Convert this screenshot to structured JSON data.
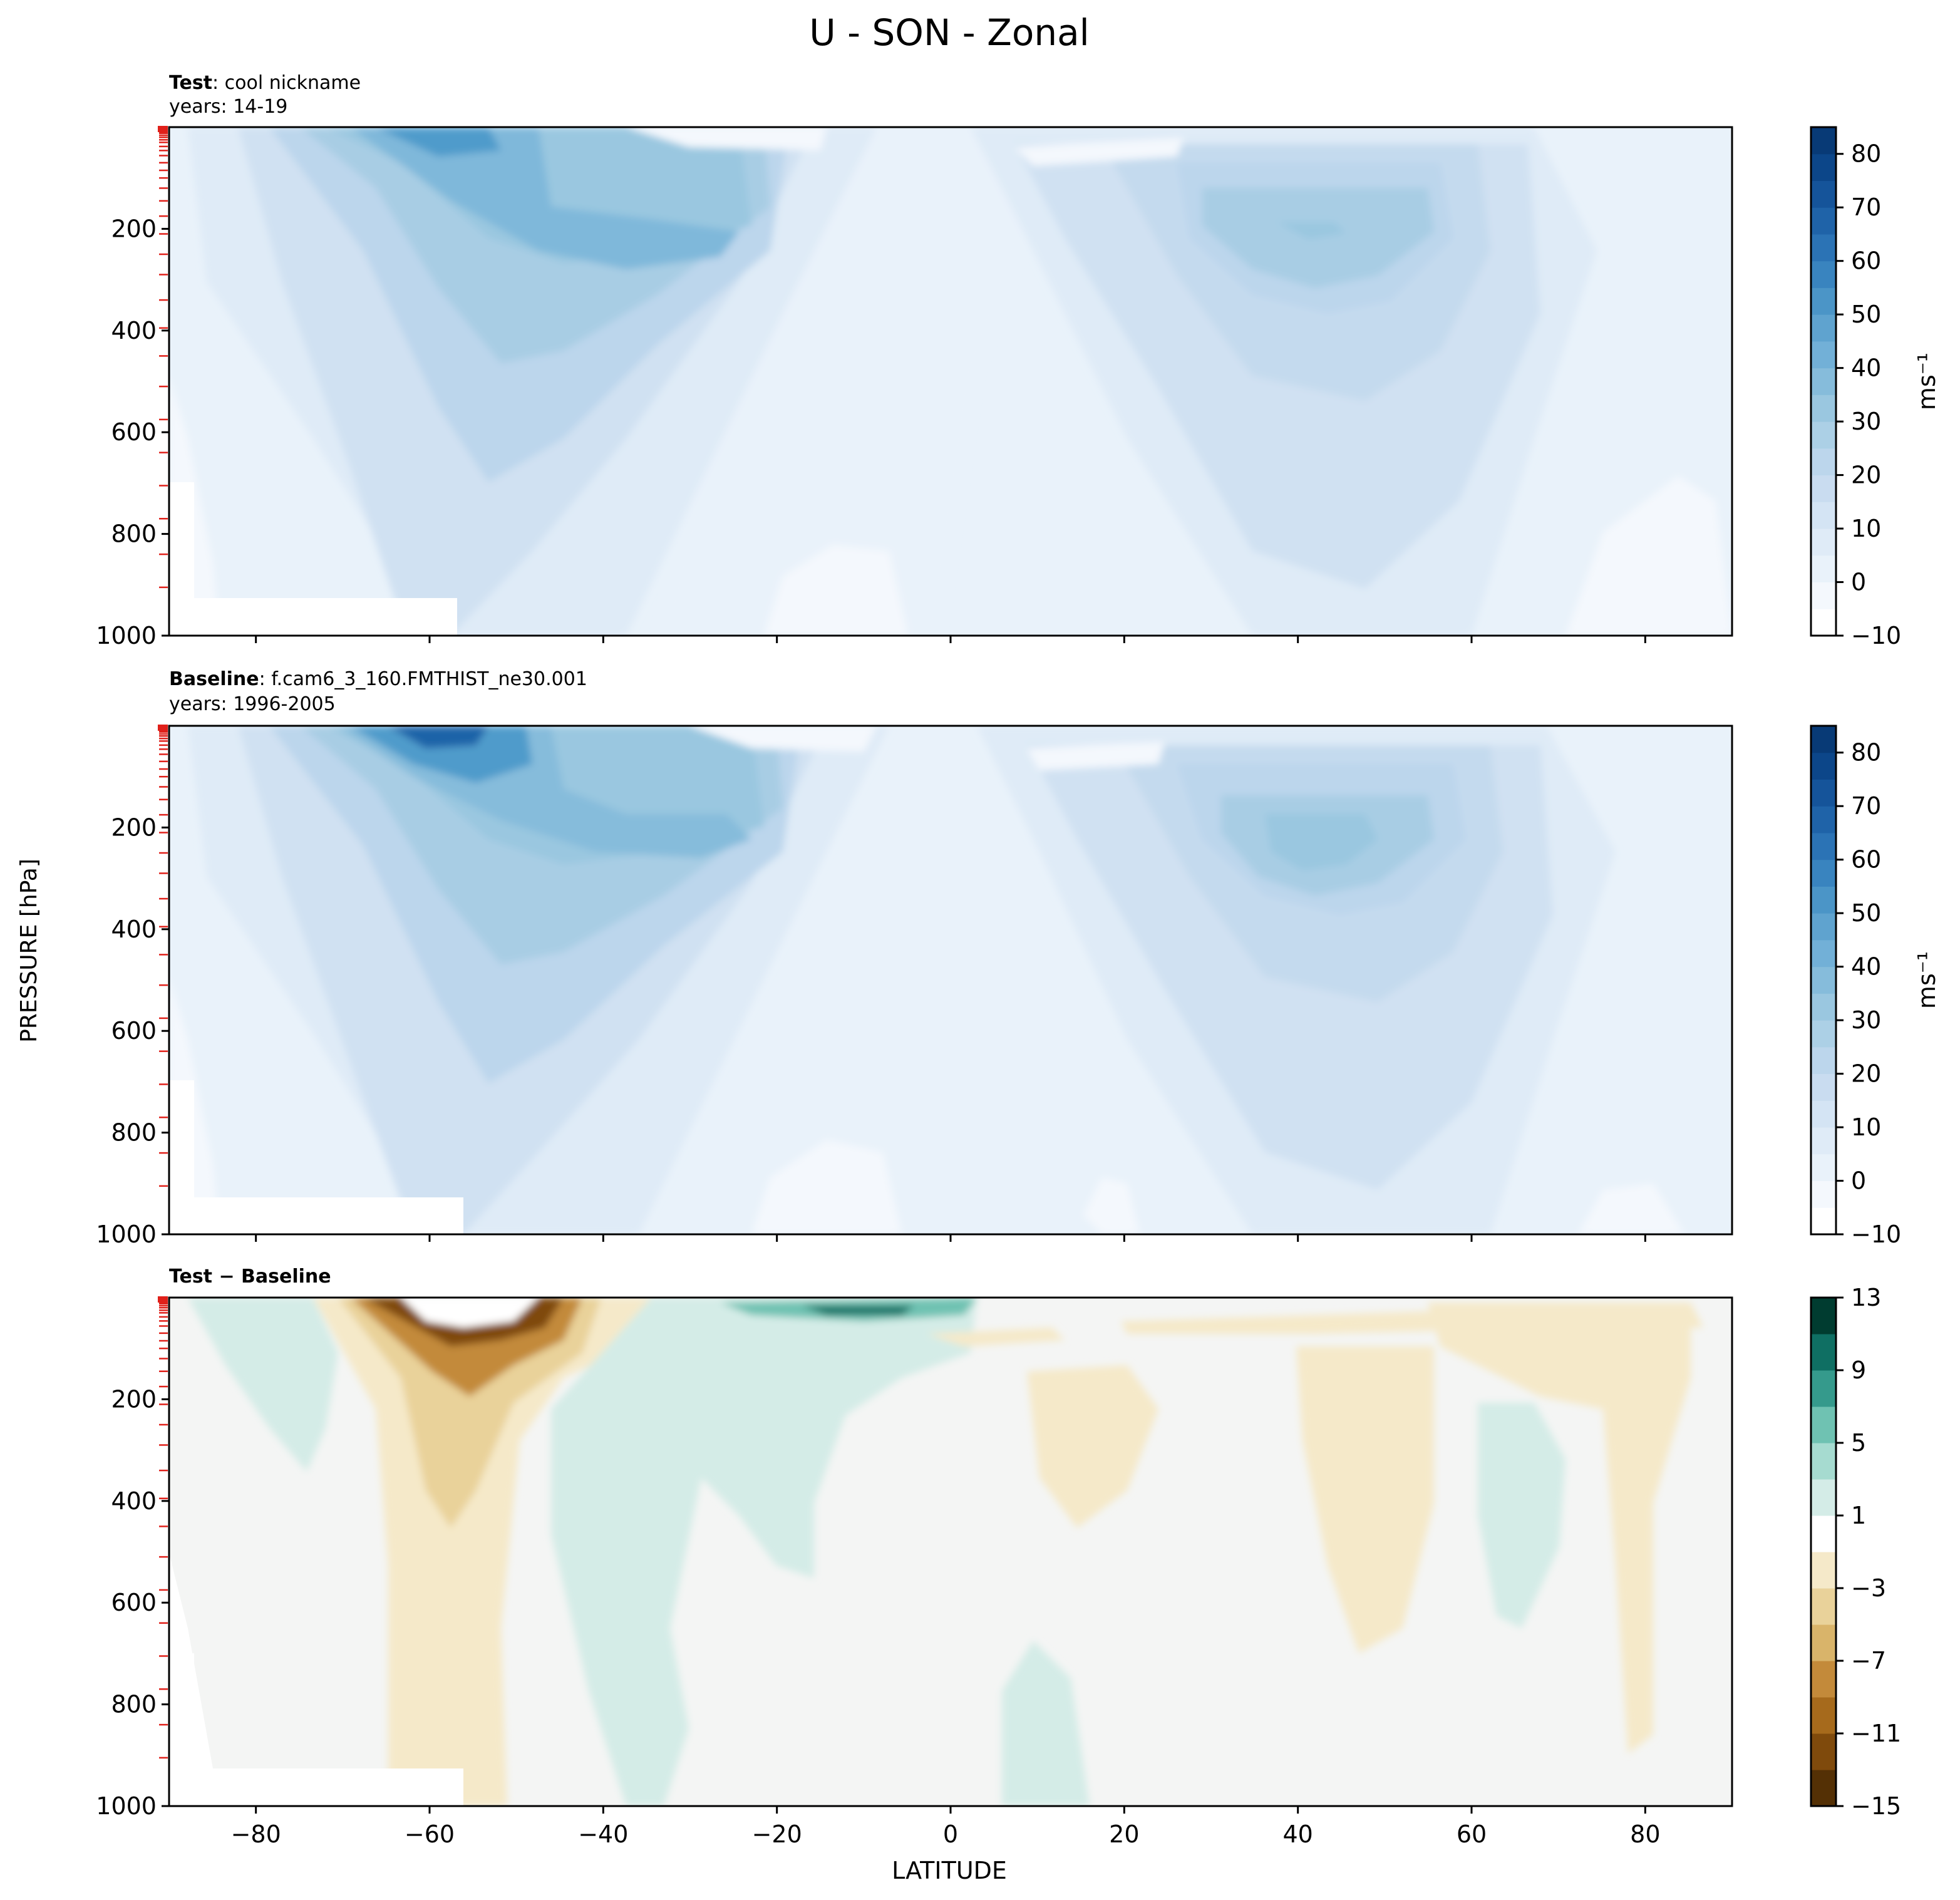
{
  "figure": {
    "title": "U - SON - Zonal",
    "xlabel": "LATITUDE",
    "ylabel": "PRESSURE [hPa]"
  },
  "chart_data": [
    {
      "type": "heatmap",
      "id": "test",
      "label_bold": "Test",
      "label_rest": ": cool nickname",
      "years": "years: 14-19",
      "xlim": [
        -90,
        90
      ],
      "ylim": [
        1000,
        0
      ],
      "x_ticks": [
        -80,
        -60,
        -40,
        -20,
        0,
        20,
        40,
        60,
        80
      ],
      "y_ticks": [
        200,
        400,
        600,
        800,
        1000
      ],
      "colorbar": {
        "label": "ms⁻¹",
        "min": -10,
        "max": 85,
        "ticks": [
          -10,
          0,
          10,
          20,
          30,
          40,
          50,
          60,
          70,
          80
        ],
        "levels": [
          -10,
          -5,
          0,
          5,
          10,
          15,
          20,
          25,
          30,
          35,
          40,
          45,
          50,
          55,
          60,
          65,
          70,
          75,
          80,
          85
        ],
        "colors": [
          "#ffffff",
          "#f4f8fd",
          "#e9f2fa",
          "#dfebf7",
          "#d4e4f4",
          "#c9dcf0",
          "#bcd6ec",
          "#acd0e6",
          "#9ac7e0",
          "#86bcdb",
          "#72b0d7",
          "#5fa3cf",
          "#4b95c7",
          "#3984bf",
          "#2b73b5",
          "#1f63a8",
          "#15549a",
          "#0c4689",
          "#083a76"
        ]
      },
      "fields": {
        "mid_jet": {
          "value": 12,
          "lat": -58,
          "p": 600,
          "color": "#d0e1f2"
        },
        "sh_jet_outer": {
          "value": 28,
          "lat": -52,
          "p": 180,
          "color": "#a8cde4"
        },
        "sh_jet_inner": {
          "value": 38,
          "lat": -45,
          "p": 140,
          "color": "#7fb8da"
        },
        "sh_jet_core": {
          "value": 45,
          "lat": -62,
          "p": 20,
          "color": "#4f9bcb"
        },
        "nh_jet_outer": {
          "value": 18,
          "lat": 42,
          "p": 300,
          "color": "#c4daee"
        },
        "nh_jet_inner": {
          "value": 25,
          "lat": 43,
          "p": 200,
          "color": "#a8cde4"
        }
      }
    },
    {
      "type": "heatmap",
      "id": "baseline",
      "label_bold": "Baseline",
      "label_rest": ": f.cam6_3_160.FMTHIST_ne30.001",
      "years": "years: 1996-2005",
      "xlim": [
        -90,
        90
      ],
      "ylim": [
        1000,
        0
      ],
      "x_ticks": [
        -80,
        -60,
        -40,
        -20,
        0,
        20,
        40,
        60,
        80
      ],
      "y_ticks": [
        200,
        400,
        600,
        800,
        1000
      ],
      "colorbar": {
        "label": "ms⁻¹",
        "min": -10,
        "max": 85,
        "ticks": [
          -10,
          0,
          10,
          20,
          30,
          40,
          50,
          60,
          70,
          80
        ],
        "levels": [
          -10,
          -5,
          0,
          5,
          10,
          15,
          20,
          25,
          30,
          35,
          40,
          45,
          50,
          55,
          60,
          65,
          70,
          75,
          80,
          85
        ],
        "colors": [
          "#ffffff",
          "#f4f8fd",
          "#e9f2fa",
          "#dfebf7",
          "#d4e4f4",
          "#c9dcf0",
          "#bcd6ec",
          "#acd0e6",
          "#9ac7e0",
          "#86bcdb",
          "#72b0d7",
          "#5fa3cf",
          "#4b95c7",
          "#3984bf",
          "#2b73b5",
          "#1f63a8",
          "#15549a",
          "#0c4689",
          "#083a76"
        ]
      },
      "fields": {
        "mid_jet": {
          "value": 12,
          "lat": -58,
          "p": 600,
          "color": "#d0e1f2"
        },
        "sh_jet_outer": {
          "value": 28,
          "lat": -52,
          "p": 180,
          "color": "#a8cde4"
        },
        "sh_jet_inner": {
          "value": 38,
          "lat": -45,
          "p": 140,
          "color": "#7fb8da"
        },
        "sh_jet_core": {
          "value": 60,
          "lat": -60,
          "p": 20,
          "color": "#1f63a8"
        },
        "nh_jet_outer": {
          "value": 18,
          "lat": 42,
          "p": 300,
          "color": "#c4daee"
        },
        "nh_jet_inner": {
          "value": 28,
          "lat": 43,
          "p": 200,
          "color": "#9ac7e0"
        }
      }
    },
    {
      "type": "heatmap",
      "id": "difference",
      "label_bold": "Test − Baseline",
      "label_rest": "",
      "years": "",
      "xlim": [
        -90,
        90
      ],
      "ylim": [
        1000,
        0
      ],
      "x_ticks": [
        -80,
        -60,
        -40,
        -20,
        0,
        20,
        40,
        60,
        80
      ],
      "y_ticks": [
        200,
        400,
        600,
        800,
        1000
      ],
      "colorbar": {
        "label": "",
        "min": -15,
        "max": 13,
        "ticks": [
          -15,
          -11,
          -7,
          -3,
          1,
          5,
          9,
          13
        ],
        "levels": [
          -15,
          -13,
          -11,
          -9,
          -7,
          -5,
          -3,
          -1,
          1,
          3,
          5,
          7,
          9,
          11,
          13
        ],
        "colors": [
          "#543005",
          "#7f4a0c",
          "#a66a1c",
          "#c38a3a",
          "#d9b46a",
          "#e9d29a",
          "#f5e9c9",
          "#ffffff",
          "#d4ece7",
          "#a6dbd0",
          "#6fc2b2",
          "#359a8c",
          "#0f6f63",
          "#003c30"
        ]
      },
      "fields": {
        "neg_weak": {
          "value": -2,
          "color": "#f5e9c9"
        },
        "neg_mod": {
          "value": -4,
          "color": "#e9d29a"
        },
        "neg_core": {
          "value": -12,
          "color": "#a66a1c"
        },
        "pos_weak": {
          "value": 2,
          "color": "#d4ece7"
        },
        "pos_core": {
          "value": 10,
          "color": "#0f6f63"
        }
      }
    }
  ]
}
